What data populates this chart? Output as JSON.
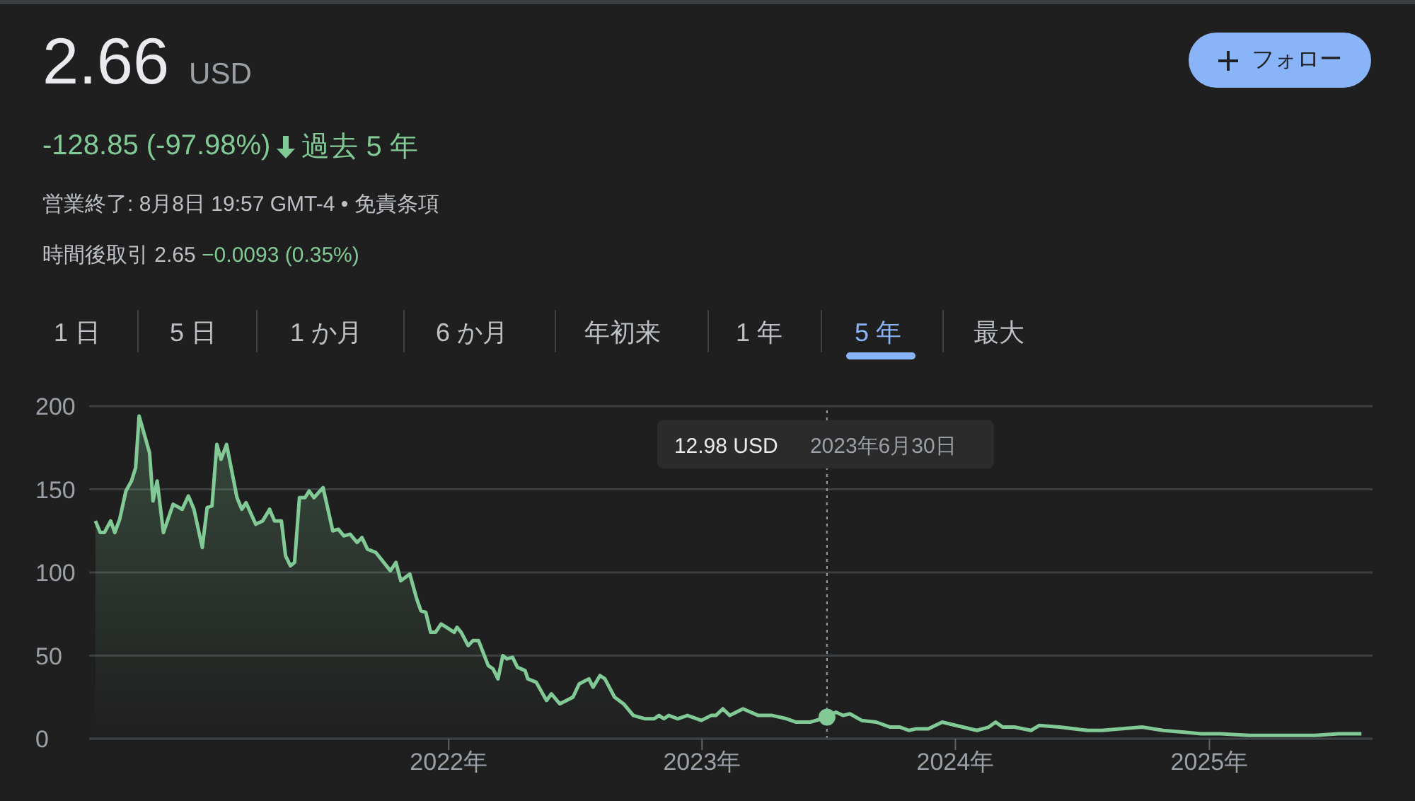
{
  "chart_data": {
    "type": "area",
    "title": "2.66",
    "subtitle": "USD",
    "annotations": [
      "-128.85 (-97.98%)",
      "過去 5 年",
      "営業終了: 8月8日 19:57 GMT-4 • 免責条項",
      "時間後取引 2.65",
      "−0.0093 (0.35%)",
      "フォロー",
      "1 日",
      "5 日",
      "1 か月",
      "6 か月",
      "年初来",
      "1 年",
      "5 年",
      "最大",
      "12.98 USD"
    ],
    "x": [
      "2020-08-10",
      "2020-08-17",
      "2020-08-23",
      "2020-09-01",
      "2020-09-07",
      "2020-09-14",
      "2020-09-23",
      "2020-10-01",
      "2020-10-07",
      "2020-10-12",
      "2020-10-27",
      "2020-11-01",
      "2020-11-07",
      "2020-11-16",
      "2020-11-30",
      "2020-12-13",
      "2020-12-22",
      "2020-12-30",
      "2021-01-11",
      "2021-01-18",
      "2021-01-25",
      "2021-02-01",
      "2021-02-07",
      "2021-02-15",
      "2021-03-02",
      "2021-03-09",
      "2021-03-15",
      "2021-03-29",
      "2021-04-08",
      "2021-04-18",
      "2021-04-25",
      "2021-05-05",
      "2021-05-11",
      "2021-05-18",
      "2021-05-24",
      "2021-05-31",
      "2021-06-08",
      "2021-06-14",
      "2021-06-21",
      "2021-07-04",
      "2021-07-18",
      "2021-07-26",
      "2021-08-03",
      "2021-08-12",
      "2021-08-22",
      "2021-08-29",
      "2021-09-06",
      "2021-09-18",
      "2021-10-09",
      "2021-10-17",
      "2021-10-24",
      "2021-11-06",
      "2021-11-16",
      "2021-11-22",
      "2021-11-29",
      "2021-12-06",
      "2021-12-13",
      "2021-12-21",
      "2021-12-29",
      "2022-01-09",
      "2022-01-13",
      "2022-01-19",
      "2022-01-29",
      "2022-02-05",
      "2022-02-13",
      "2022-02-27",
      "2022-03-06",
      "2022-03-13",
      "2022-03-20",
      "2022-03-26",
      "2022-04-03",
      "2022-04-10",
      "2022-04-21",
      "2022-04-25",
      "2022-05-07",
      "2022-05-22",
      "2022-05-29",
      "2022-06-10",
      "2022-06-29",
      "2022-07-08",
      "2022-07-22",
      "2022-07-28",
      "2022-08-07",
      "2022-08-14",
      "2022-08-28",
      "2022-09-10",
      "2022-09-24",
      "2022-10-11",
      "2022-10-24",
      "2022-10-31",
      "2022-11-07",
      "2022-11-14",
      "2022-11-27",
      "2022-12-11",
      "2022-12-31",
      "2023-01-14",
      "2023-01-21",
      "2023-01-31",
      "2023-02-10",
      "2023-03-01",
      "2023-03-23",
      "2023-04-12",
      "2023-05-03",
      "2023-05-16",
      "2023-06-06",
      "2023-06-30",
      "2023-07-13",
      "2023-07-23",
      "2023-08-02",
      "2023-08-19",
      "2023-09-09",
      "2023-09-29",
      "2023-10-13",
      "2023-10-26",
      "2023-11-06",
      "2023-11-23",
      "2023-12-13",
      "2024-01-02",
      "2024-02-01",
      "2024-02-18",
      "2024-02-28",
      "2024-03-09",
      "2024-03-26",
      "2024-04-19",
      "2024-05-01",
      "2024-05-30",
      "2024-07-10",
      "2024-07-30",
      "2024-08-26",
      "2024-09-26",
      "2024-10-26",
      "2024-11-23",
      "2024-12-20",
      "2025-01-17",
      "2025-02-27",
      "2025-04-09",
      "2025-05-06",
      "2025-06-02",
      "2025-07-06",
      "2025-07-23",
      "2025-08-08"
    ],
    "series": [
      {
        "color": "#81c995",
        "values": [
          131,
          124,
          124,
          131,
          124,
          132,
          149,
          155,
          163,
          194,
          172,
          143,
          155,
          124,
          141,
          138,
          146,
          138,
          115,
          139,
          140,
          177,
          168,
          177,
          145,
          138,
          142,
          129,
          131,
          138,
          131,
          131,
          110,
          104,
          106,
          145,
          145,
          149,
          145,
          151,
          125,
          126,
          122,
          123,
          118,
          121,
          114,
          112,
          101,
          106,
          95,
          99,
          84,
          77,
          76,
          64,
          64,
          69,
          67,
          64,
          67,
          64,
          56,
          59,
          59,
          44,
          42,
          36,
          50,
          48,
          49,
          43,
          41,
          36,
          34,
          23,
          27,
          21,
          25,
          33,
          36,
          31,
          38,
          36,
          25,
          21,
          14,
          12,
          12,
          14,
          12,
          14,
          12,
          14,
          11,
          14,
          14,
          18,
          14,
          18,
          14,
          14,
          12,
          10,
          10,
          13,
          16,
          14,
          15,
          11,
          10,
          7,
          7,
          5,
          6,
          6,
          10,
          8,
          5,
          7,
          10,
          7,
          7,
          5,
          8,
          7,
          5,
          5,
          6,
          7,
          5,
          4,
          3,
          3,
          2,
          2,
          2,
          2,
          3,
          3,
          3
        ]
      }
    ],
    "xlim": [
      "2020-08-01",
      "2025-08-24"
    ],
    "xticks": [
      {
        "value": "2022",
        "label": "2022年"
      },
      {
        "value": "2023",
        "label": "2023年"
      },
      {
        "value": "2024",
        "label": "2024年"
      },
      {
        "value": "2025",
        "label": "2025年"
      }
    ],
    "ylim": [
      0,
      200
    ],
    "yticks": [
      0,
      50,
      100,
      150,
      200
    ],
    "grid": "y",
    "ref_lines": [
      {
        "axis": "x",
        "value": "2023-06-30",
        "label": "2023年6月30日",
        "line_style": "dotted",
        "color": "#9aa0a6"
      }
    ]
  }
}
